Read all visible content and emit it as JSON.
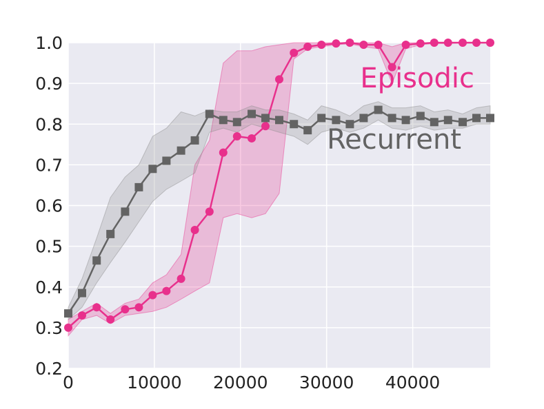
{
  "chart_data": {
    "type": "line",
    "title": "",
    "xlabel": "",
    "ylabel": "",
    "xlim": [
      0,
      49000
    ],
    "ylim": [
      0.2,
      1.0
    ],
    "xticks": [
      0,
      10000,
      20000,
      30000,
      40000
    ],
    "xtick_labels": [
      "0",
      "10000",
      "20000",
      "30000",
      "40000"
    ],
    "yticks": [
      0.2,
      0.3,
      0.4,
      0.5,
      0.6,
      0.7,
      0.8,
      0.9,
      1.0
    ],
    "ytick_labels": [
      "0.2",
      "0.3",
      "0.4",
      "0.5",
      "0.6",
      "0.7",
      "0.8",
      "0.9",
      "1.0"
    ],
    "grid": true,
    "series": [
      {
        "name": "Episodic",
        "color": "#e8308c",
        "band_color": "#e8308c",
        "marker": "circle",
        "label_position": "upper-right",
        "x": [
          0,
          1600,
          3300,
          4900,
          6600,
          8200,
          9800,
          11400,
          13100,
          14700,
          16400,
          18000,
          19600,
          21300,
          22900,
          24500,
          26200,
          27800,
          29400,
          31100,
          32700,
          34300,
          36000,
          37600,
          39200,
          40900,
          42500,
          44100,
          45800,
          47400,
          49000
        ],
        "y": [
          0.3,
          0.33,
          0.35,
          0.32,
          0.345,
          0.35,
          0.38,
          0.39,
          0.42,
          0.54,
          0.585,
          0.73,
          0.77,
          0.765,
          0.795,
          0.91,
          0.975,
          0.99,
          0.995,
          0.998,
          1.0,
          0.995,
          0.995,
          0.94,
          0.995,
          0.998,
          1.0,
          1.0,
          1.0,
          1.0,
          1.0
        ],
        "lower": [
          0.28,
          0.32,
          0.33,
          0.31,
          0.33,
          0.335,
          0.34,
          0.35,
          0.37,
          0.39,
          0.41,
          0.57,
          0.58,
          0.57,
          0.58,
          0.63,
          0.96,
          0.985,
          0.99,
          0.995,
          0.997,
          0.99,
          0.985,
          0.9,
          0.985,
          0.995,
          0.998,
          0.998,
          1.0,
          1.0,
          1.0
        ],
        "upper": [
          0.32,
          0.34,
          0.36,
          0.335,
          0.36,
          0.37,
          0.41,
          0.43,
          0.48,
          0.7,
          0.76,
          0.95,
          0.98,
          0.98,
          0.99,
          0.995,
          1.0,
          1.0,
          1.0,
          1.0,
          1.0,
          1.0,
          1.0,
          0.99,
          1.0,
          1.0,
          1.0,
          1.0,
          1.0,
          1.0,
          1.0
        ]
      },
      {
        "name": "Recurrent",
        "color": "#636363",
        "band_color": "#8c8c8c",
        "marker": "square",
        "label_position": "right",
        "x": [
          0,
          1600,
          3300,
          4900,
          6600,
          8200,
          9800,
          11400,
          13100,
          14700,
          16400,
          18000,
          19600,
          21300,
          22900,
          24500,
          26200,
          27800,
          29400,
          31100,
          32700,
          34300,
          36000,
          37600,
          39200,
          40900,
          42500,
          44100,
          45800,
          47400,
          49000
        ],
        "y": [
          0.335,
          0.385,
          0.465,
          0.53,
          0.585,
          0.645,
          0.69,
          0.71,
          0.735,
          0.76,
          0.825,
          0.81,
          0.805,
          0.825,
          0.815,
          0.81,
          0.8,
          0.785,
          0.815,
          0.81,
          0.8,
          0.815,
          0.835,
          0.815,
          0.81,
          0.82,
          0.805,
          0.81,
          0.805,
          0.815,
          0.815
        ],
        "lower": [
          0.32,
          0.35,
          0.41,
          0.46,
          0.51,
          0.56,
          0.61,
          0.64,
          0.66,
          0.68,
          0.78,
          0.79,
          0.78,
          0.8,
          0.79,
          0.78,
          0.77,
          0.75,
          0.78,
          0.79,
          0.78,
          0.79,
          0.81,
          0.79,
          0.785,
          0.795,
          0.785,
          0.79,
          0.79,
          0.8,
          0.8
        ],
        "upper": [
          0.35,
          0.42,
          0.52,
          0.62,
          0.67,
          0.7,
          0.77,
          0.79,
          0.83,
          0.82,
          0.835,
          0.83,
          0.83,
          0.845,
          0.835,
          0.835,
          0.825,
          0.81,
          0.845,
          0.835,
          0.82,
          0.845,
          0.855,
          0.84,
          0.84,
          0.845,
          0.83,
          0.835,
          0.825,
          0.84,
          0.845
        ]
      }
    ]
  },
  "colors": {
    "plot_background": "#eaeaf2",
    "grid": "#ffffff",
    "axis_text": "#222222"
  }
}
